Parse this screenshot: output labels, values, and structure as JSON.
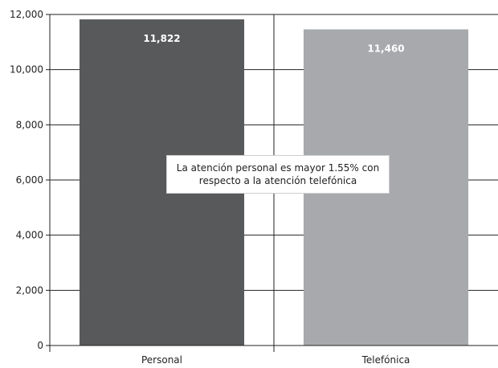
{
  "chart_data": {
    "type": "bar",
    "categories": [
      "Personal",
      "Telefónica"
    ],
    "values": [
      11822,
      11460
    ],
    "data_labels": [
      "11,822",
      "11,460"
    ],
    "title": "",
    "xlabel": "",
    "ylabel": "",
    "ylim": [
      0,
      12000
    ],
    "yticks": [
      0,
      2000,
      4000,
      6000,
      8000,
      10000,
      12000
    ],
    "ytick_labels": [
      "0",
      "2,000",
      "4,000",
      "6,000",
      "8,000",
      "10,000",
      "12,000"
    ],
    "grid": true,
    "bar_colors": [
      "#58595b",
      "#a7a9ac"
    ],
    "annotation": "La atención personal es mayor 1.55% con respecto a la atención telefónica"
  }
}
